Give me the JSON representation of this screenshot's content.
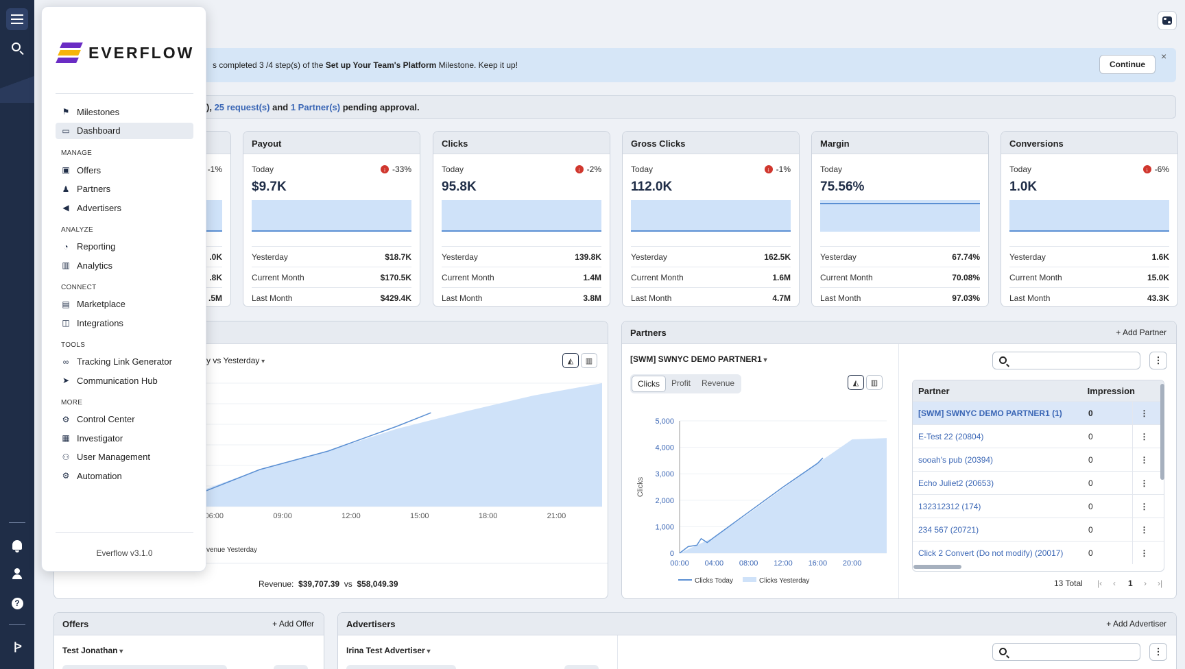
{
  "milestone_banner": {
    "text_prefix": "s completed 3 /4 step(s) of the ",
    "milestone_name": "Set up Your Team's Platform",
    "text_suffix": " Milestone. Keep it up!",
    "continue_label": "Continue",
    "close_glyph": "×"
  },
  "pending_banner": {
    "prefix": "), ",
    "requests": "25 request(s)",
    "and": " and ",
    "partners": "1 Partner(s)",
    "suffix": " pending approval."
  },
  "partial_card": {
    "change": "-1%",
    "v1": ".0K",
    "v2": ".8K",
    "v3": ".5M"
  },
  "cards": [
    {
      "title": "Payout",
      "today_label": "Today",
      "change": "-33%",
      "today": "$9.7K",
      "rows": [
        {
          "label": "Yesterday",
          "value": "$18.7K"
        },
        {
          "label": "Current Month",
          "value": "$170.5K"
        },
        {
          "label": "Last Month",
          "value": "$429.4K"
        }
      ]
    },
    {
      "title": "Clicks",
      "today_label": "Today",
      "change": "-2%",
      "today": "95.8K",
      "rows": [
        {
          "label": "Yesterday",
          "value": "139.8K"
        },
        {
          "label": "Current Month",
          "value": "1.4M"
        },
        {
          "label": "Last Month",
          "value": "3.8M"
        }
      ]
    },
    {
      "title": "Gross Clicks",
      "today_label": "Today",
      "change": "-1%",
      "today": "112.0K",
      "rows": [
        {
          "label": "Yesterday",
          "value": "162.5K"
        },
        {
          "label": "Current Month",
          "value": "1.6M"
        },
        {
          "label": "Last Month",
          "value": "4.7M"
        }
      ]
    },
    {
      "title": "Margin",
      "today_label": "Today",
      "change": "",
      "today": "75.56%",
      "rows": [
        {
          "label": "Yesterday",
          "value": "67.74%"
        },
        {
          "label": "Current Month",
          "value": "70.08%"
        },
        {
          "label": "Last Month",
          "value": "97.03%"
        }
      ]
    },
    {
      "title": "Conversions",
      "today_label": "Today",
      "change": "-6%",
      "today": "1.0K",
      "rows": [
        {
          "label": "Yesterday",
          "value": "1.6K"
        },
        {
          "label": "Current Month",
          "value": "15.0K"
        },
        {
          "label": "Last Month",
          "value": "43.3K"
        }
      ]
    }
  ],
  "revenue_panel": {
    "compare_label": "y vs Yesterday",
    "legend_partial": "venue Yesterday",
    "summary_label": "Revenue:",
    "summary_today": "$39,707.39",
    "summary_vs": "vs",
    "summary_yesterday": "$58,049.39"
  },
  "partners_panel": {
    "title": "Partners",
    "add_label": "+ Add Partner",
    "selected_partner": "[SWM] SWNYC DEMO PARTNER1",
    "tabs": [
      "Clicks",
      "Profit",
      "Revenue"
    ],
    "active_tab": "Clicks",
    "table_headers": [
      "Partner",
      "Impression"
    ],
    "rows": [
      {
        "name": "[SWM] SWNYC DEMO PARTNER1 (1)",
        "impressions": "0"
      },
      {
        "name": "E-Test 22 (20804)",
        "impressions": "0"
      },
      {
        "name": "sooah's pub (20394)",
        "impressions": "0"
      },
      {
        "name": "Echo Juliet2 (20653)",
        "impressions": "0"
      },
      {
        "name": "132312312 (174)",
        "impressions": "0"
      },
      {
        "name": "234 567 (20721)",
        "impressions": "0"
      },
      {
        "name": "Click 2 Convert (Do not modify) (20017)",
        "impressions": "0"
      }
    ],
    "total_label": "13 Total",
    "page": "1",
    "kebab": "⋮"
  },
  "offers_panel": {
    "title": "Offers",
    "add_label": "+ Add Offer",
    "selected": "Test Jonathan"
  },
  "advertisers_panel": {
    "title": "Advertisers",
    "add_label": "+ Add Advertiser",
    "selected": "Irina Test Advertiser"
  },
  "menu": {
    "logo_text": "EVERFLOW",
    "top_items": [
      {
        "label": "Milestones",
        "icon": "flag-icon",
        "glyph": "⚑"
      },
      {
        "label": "Dashboard",
        "icon": "monitor-icon",
        "glyph": "▭"
      }
    ],
    "sections": [
      {
        "title": "MANAGE",
        "items": [
          {
            "label": "Offers",
            "icon": "offers-icon",
            "glyph": "▣"
          },
          {
            "label": "Partners",
            "icon": "partners-icon",
            "glyph": "♟"
          },
          {
            "label": "Advertisers",
            "icon": "megaphone-icon",
            "glyph": "◀"
          }
        ]
      },
      {
        "title": "ANALYZE",
        "items": [
          {
            "label": "Reporting",
            "icon": "reporting-icon",
            "glyph": "◔"
          },
          {
            "label": "Analytics",
            "icon": "analytics-icon",
            "glyph": "▥"
          }
        ]
      },
      {
        "title": "CONNECT",
        "items": [
          {
            "label": "Marketplace",
            "icon": "store-icon",
            "glyph": "▤"
          },
          {
            "label": "Integrations",
            "icon": "integrations-icon",
            "glyph": "◫"
          }
        ]
      },
      {
        "title": "TOOLS",
        "items": [
          {
            "label": "Tracking Link Generator",
            "icon": "link-icon",
            "glyph": "∞"
          },
          {
            "label": "Communication Hub",
            "icon": "send-icon",
            "glyph": "➤"
          }
        ]
      },
      {
        "title": "MORE",
        "items": [
          {
            "label": "Control Center",
            "icon": "gear-icon",
            "glyph": "⚙"
          },
          {
            "label": "Investigator",
            "icon": "investigator-icon",
            "glyph": "▦"
          },
          {
            "label": "User Management",
            "icon": "user-management-icon",
            "glyph": "⚇"
          },
          {
            "label": "Automation",
            "icon": "automation-icon",
            "glyph": "⚙"
          }
        ]
      }
    ],
    "version": "Everflow v3.1.0"
  },
  "chart_data": [
    {
      "type": "area",
      "title": "",
      "x_ticks": [
        "06:00",
        "09:00",
        "12:00",
        "15:00",
        "18:00",
        "21:00"
      ],
      "series": [
        {
          "name": "",
          "values_x": [
            5,
            8,
            11,
            14,
            15.5
          ],
          "values_y": [
            0.08,
            0.3,
            0.45,
            0.65,
            0.76
          ]
        },
        {
          "name": "Revenue Yesterday",
          "values_x": [
            5,
            8,
            11,
            14,
            17,
            20,
            23
          ],
          "values_y": [
            0.1,
            0.3,
            0.45,
            0.63,
            0.77,
            0.9,
            1.0
          ]
        }
      ],
      "xlim": [
        5,
        23
      ],
      "ylim": [
        0,
        1
      ]
    },
    {
      "type": "area",
      "title": "",
      "ylabel": "Clicks",
      "x_ticks": [
        "00:00",
        "04:00",
        "08:00",
        "12:00",
        "16:00",
        "20:00"
      ],
      "y_ticks": [
        0,
        1000,
        2000,
        3000,
        4000,
        5000
      ],
      "ylim": [
        0,
        5000
      ],
      "xlim": [
        0,
        24
      ],
      "series": [
        {
          "name": "Clicks Today",
          "x": [
            0,
            1,
            2,
            2.5,
            3.2,
            4,
            8,
            12,
            16,
            16.6
          ],
          "y": [
            0,
            250,
            300,
            550,
            400,
            600,
            1550,
            2500,
            3400,
            3600
          ]
        },
        {
          "name": "Clicks Yesterday",
          "x": [
            0,
            4,
            8,
            12,
            16,
            20,
            24
          ],
          "y": [
            0,
            600,
            1500,
            2450,
            3400,
            4300,
            4350
          ]
        }
      ],
      "legend": "bottom"
    }
  ]
}
